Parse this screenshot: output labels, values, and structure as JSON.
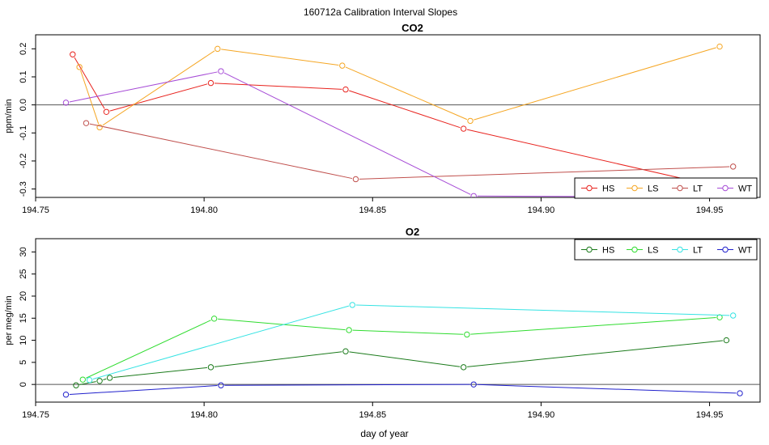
{
  "figure": {
    "title": "160712a   Calibration Interval Slopes",
    "xlabel": "day of year"
  },
  "colors": {
    "co2": {
      "HS": "#e8231e",
      "LS": "#f5a623",
      "LT": "#c0504d",
      "WT": "#a64bd6"
    },
    "o2": {
      "HS": "#1a7a1a",
      "LS": "#2fdc2f",
      "LT": "#35e3e3",
      "WT": "#2020cc"
    }
  },
  "chart_data": [
    {
      "type": "line",
      "title": "CO2",
      "ylabel": "ppm/min",
      "xlabel": "",
      "xlim": [
        194.75,
        194.965
      ],
      "ylim": [
        -0.33,
        0.25
      ],
      "xticks": [
        "194.75",
        "194.80",
        "194.85",
        "194.90",
        "194.95"
      ],
      "yticks": [
        "0.2",
        "0.1",
        "0.0",
        "-0.1",
        "-0.2",
        "-0.3"
      ],
      "ytick_values": [
        0.2,
        0.1,
        0.0,
        -0.1,
        -0.2,
        -0.3
      ],
      "xtick_values": [
        194.75,
        194.8,
        194.85,
        194.9,
        194.95
      ],
      "hline": 0,
      "marker": "circle",
      "legend": {
        "position": "bottom-right",
        "entries": [
          "HS",
          "LS",
          "LT",
          "WT"
        ]
      },
      "series": [
        {
          "name": "HS",
          "x": [
            194.761,
            194.771,
            194.802,
            194.842,
            194.877,
            194.952
          ],
          "y": [
            0.18,
            -0.025,
            0.078,
            0.055,
            -0.085,
            -0.29
          ]
        },
        {
          "name": "LS",
          "x": [
            194.763,
            194.769,
            194.804,
            194.841,
            194.879,
            194.953
          ],
          "y": [
            0.135,
            -0.08,
            0.2,
            0.14,
            -0.057,
            0.208
          ]
        },
        {
          "name": "LT",
          "x": [
            194.765,
            194.845,
            194.957
          ],
          "y": [
            -0.065,
            -0.265,
            -0.22
          ]
        },
        {
          "name": "WT",
          "x": [
            194.759,
            194.805,
            194.88,
            194.945
          ],
          "y": [
            0.008,
            0.12,
            -0.325,
            -0.328
          ]
        }
      ]
    },
    {
      "type": "line",
      "title": "O2",
      "ylabel": "per meg/min",
      "xlabel": "day of year",
      "xlim": [
        194.75,
        194.965
      ],
      "ylim": [
        -4,
        33
      ],
      "xticks": [
        "194.75",
        "194.80",
        "194.85",
        "194.90",
        "194.95"
      ],
      "xtick_values": [
        194.75,
        194.8,
        194.85,
        194.9,
        194.95
      ],
      "yticks": [
        "0",
        "5",
        "10",
        "15",
        "20",
        "25",
        "30"
      ],
      "ytick_values": [
        0,
        5,
        10,
        15,
        20,
        25,
        30
      ],
      "hline": 0,
      "marker": "circle",
      "legend": {
        "position": "top-right",
        "entries": [
          "HS",
          "LS",
          "LT",
          "WT"
        ]
      },
      "series": [
        {
          "name": "HS",
          "x": [
            194.762,
            194.769,
            194.772,
            194.802,
            194.842,
            194.877,
            194.955
          ],
          "y": [
            -0.2,
            0.8,
            1.5,
            3.9,
            7.5,
            3.9,
            10.0
          ]
        },
        {
          "name": "LS",
          "x": [
            194.764,
            194.803,
            194.843,
            194.878,
            194.953
          ],
          "y": [
            1.1,
            14.9,
            12.3,
            11.3,
            15.2
          ]
        },
        {
          "name": "LT",
          "x": [
            194.766,
            194.844,
            194.957
          ],
          "y": [
            1.0,
            18.0,
            15.6
          ]
        },
        {
          "name": "WT",
          "x": [
            194.759,
            194.805,
            194.88,
            194.959
          ],
          "y": [
            -2.3,
            -0.2,
            0.0,
            -2.0
          ]
        }
      ]
    }
  ]
}
